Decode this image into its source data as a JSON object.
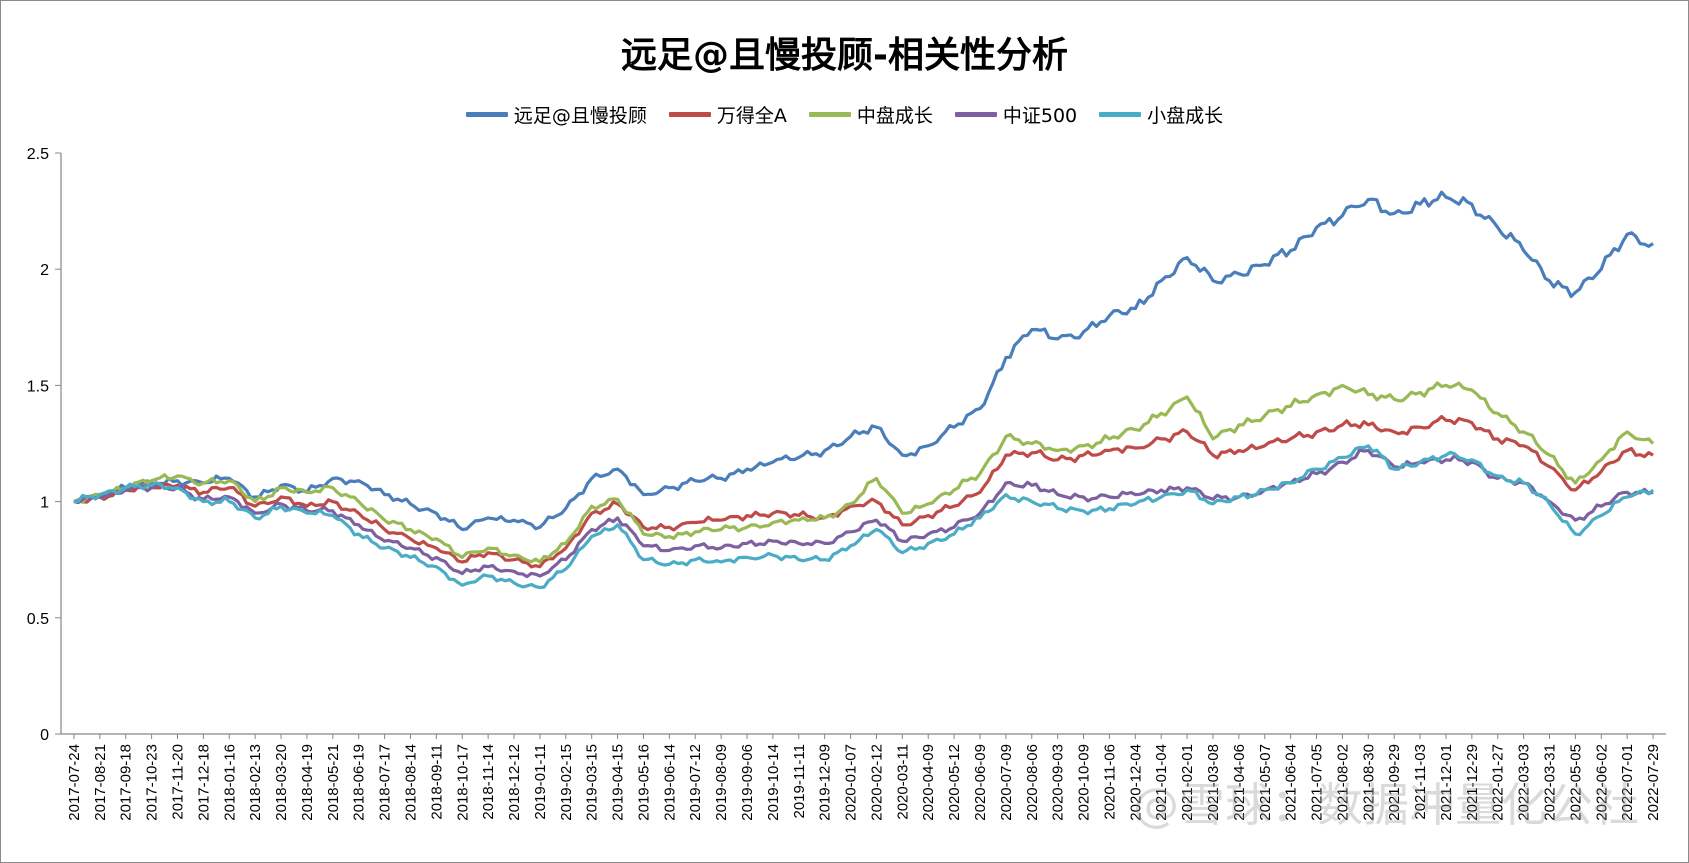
{
  "chart_data": {
    "type": "line",
    "title": "远足@且慢投顾-相关性分析",
    "xlabel": "",
    "ylabel": "",
    "ylim": [
      0,
      2.5
    ],
    "yticks": [
      "0",
      "0.5",
      "1",
      "1.5",
      "2",
      "2.5"
    ],
    "grid": false,
    "legend_position": "top",
    "x": [
      "2017-07-24",
      "2017-08-21",
      "2017-09-18",
      "2017-10-23",
      "2017-11-20",
      "2017-12-18",
      "2018-01-16",
      "2018-02-13",
      "2018-03-20",
      "2018-04-19",
      "2018-05-21",
      "2018-06-19",
      "2018-07-17",
      "2018-08-14",
      "2018-09-11",
      "2018-10-17",
      "2018-11-14",
      "2018-12-12",
      "2019-01-11",
      "2019-02-15",
      "2019-03-15",
      "2019-04-15",
      "2019-05-16",
      "2019-06-14",
      "2019-07-12",
      "2019-08-09",
      "2019-09-06",
      "2019-10-14",
      "2019-11-11",
      "2019-12-09",
      "2020-01-07",
      "2020-02-12",
      "2020-03-11",
      "2020-04-09",
      "2020-05-12",
      "2020-06-09",
      "2020-07-09",
      "2020-08-06",
      "2020-09-03",
      "2020-10-09",
      "2020-11-06",
      "2020-12-04",
      "2021-01-04",
      "2021-02-01",
      "2021-03-08",
      "2021-04-06",
      "2021-05-07",
      "2021-06-04",
      "2021-07-05",
      "2021-08-02",
      "2021-08-30",
      "2021-09-29",
      "2021-11-03",
      "2021-12-01",
      "2021-12-29",
      "2022-01-27",
      "2022-03-03",
      "2022-03-31",
      "2022-05-05",
      "2022-06-02",
      "2022-07-01",
      "2022-07-29"
    ],
    "series": [
      {
        "name": "远足@且慢投顾",
        "color": "#4a7ebb",
        "values": [
          1.0,
          1.03,
          1.06,
          1.08,
          1.09,
          1.08,
          1.1,
          1.02,
          1.07,
          1.04,
          1.1,
          1.09,
          1.03,
          0.99,
          0.95,
          0.88,
          0.93,
          0.92,
          0.89,
          0.97,
          1.1,
          1.14,
          1.03,
          1.06,
          1.09,
          1.1,
          1.14,
          1.17,
          1.19,
          1.22,
          1.28,
          1.32,
          1.2,
          1.24,
          1.32,
          1.4,
          1.62,
          1.74,
          1.7,
          1.73,
          1.8,
          1.83,
          1.95,
          2.05,
          1.95,
          1.98,
          2.02,
          2.08,
          2.18,
          2.23,
          2.3,
          2.24,
          2.28,
          2.31,
          2.28,
          2.18,
          2.08,
          1.95,
          1.9,
          2.0,
          2.15,
          2.11
        ]
      },
      {
        "name": "万得全A",
        "color": "#be4b48",
        "values": [
          1.0,
          1.02,
          1.05,
          1.06,
          1.07,
          1.04,
          1.06,
          0.98,
          1.02,
          0.98,
          1.0,
          0.95,
          0.88,
          0.84,
          0.8,
          0.74,
          0.78,
          0.75,
          0.72,
          0.8,
          0.95,
          0.99,
          0.89,
          0.89,
          0.91,
          0.92,
          0.94,
          0.95,
          0.94,
          0.93,
          0.98,
          1.0,
          0.9,
          0.94,
          0.98,
          1.04,
          1.2,
          1.21,
          1.18,
          1.2,
          1.22,
          1.23,
          1.27,
          1.3,
          1.2,
          1.22,
          1.24,
          1.27,
          1.3,
          1.33,
          1.33,
          1.3,
          1.32,
          1.35,
          1.34,
          1.27,
          1.24,
          1.15,
          1.05,
          1.13,
          1.22,
          1.2
        ]
      },
      {
        "name": "中盘成长",
        "color": "#98b954",
        "values": [
          1.0,
          1.03,
          1.06,
          1.09,
          1.11,
          1.08,
          1.09,
          1.0,
          1.06,
          1.04,
          1.06,
          1.0,
          0.92,
          0.88,
          0.84,
          0.76,
          0.8,
          0.77,
          0.74,
          0.82,
          0.98,
          1.01,
          0.86,
          0.85,
          0.87,
          0.88,
          0.89,
          0.91,
          0.92,
          0.93,
          0.99,
          1.1,
          0.95,
          0.99,
          1.05,
          1.12,
          1.28,
          1.25,
          1.22,
          1.24,
          1.27,
          1.31,
          1.38,
          1.45,
          1.27,
          1.33,
          1.37,
          1.41,
          1.46,
          1.5,
          1.46,
          1.44,
          1.47,
          1.5,
          1.48,
          1.38,
          1.3,
          1.2,
          1.08,
          1.18,
          1.3,
          1.25
        ]
      },
      {
        "name": "中证500",
        "color": "#7d60a0",
        "values": [
          1.0,
          1.02,
          1.05,
          1.06,
          1.06,
          1.01,
          1.02,
          0.95,
          0.99,
          0.96,
          0.96,
          0.9,
          0.83,
          0.8,
          0.76,
          0.69,
          0.72,
          0.7,
          0.68,
          0.75,
          0.88,
          0.93,
          0.81,
          0.79,
          0.81,
          0.8,
          0.82,
          0.83,
          0.82,
          0.82,
          0.87,
          0.92,
          0.83,
          0.86,
          0.89,
          0.95,
          1.08,
          1.07,
          1.03,
          1.02,
          1.02,
          1.03,
          1.05,
          1.06,
          1.01,
          1.02,
          1.05,
          1.08,
          1.12,
          1.17,
          1.22,
          1.15,
          1.17,
          1.18,
          1.17,
          1.1,
          1.08,
          1.0,
          0.92,
          0.98,
          1.04,
          1.04
        ]
      },
      {
        "name": "小盘成长",
        "color": "#4bacc6",
        "values": [
          1.0,
          1.03,
          1.06,
          1.07,
          1.06,
          1.0,
          1.0,
          0.93,
          0.98,
          0.95,
          0.94,
          0.86,
          0.8,
          0.76,
          0.72,
          0.64,
          0.68,
          0.65,
          0.63,
          0.71,
          0.85,
          0.9,
          0.75,
          0.73,
          0.75,
          0.74,
          0.76,
          0.77,
          0.75,
          0.75,
          0.81,
          0.88,
          0.78,
          0.82,
          0.86,
          0.93,
          1.03,
          1.0,
          0.97,
          0.96,
          0.97,
          0.99,
          1.02,
          1.05,
          0.99,
          1.02,
          1.05,
          1.08,
          1.14,
          1.19,
          1.24,
          1.14,
          1.17,
          1.2,
          1.18,
          1.11,
          1.08,
          0.99,
          0.86,
          0.94,
          1.02,
          1.05
        ]
      }
    ]
  },
  "watermark": "@雪球：数据冲量化公社"
}
